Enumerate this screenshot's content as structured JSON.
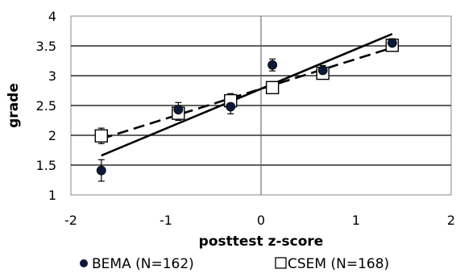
{
  "chart_data": {
    "type": "scatter",
    "xlabel": "posttest z-score",
    "ylabel": "grade",
    "xlim": [
      -2,
      2
    ],
    "ylim": [
      1,
      4
    ],
    "x_ticks": [
      -2,
      -1,
      0,
      1,
      2
    ],
    "y_ticks": [
      1,
      1.5,
      2,
      2.5,
      3,
      3.5,
      4
    ],
    "x_tick_labels": [
      "-2",
      "-1",
      "0",
      "1",
      "2"
    ],
    "y_tick_labels": [
      "1",
      "1.5",
      "2",
      "2.5",
      "3",
      "3.5",
      "4"
    ],
    "grid": "horizontal",
    "legend_position": "bottom",
    "series": [
      {
        "name": "BEMA (N=162)",
        "marker": "filled-circle",
        "color": "#0b1a3a",
        "points": [
          {
            "x": -1.68,
            "y": 1.41,
            "err": 0.18
          },
          {
            "x": -0.87,
            "y": 2.43,
            "err": 0.12
          },
          {
            "x": -0.32,
            "y": 2.48,
            "err": 0.12
          },
          {
            "x": 0.12,
            "y": 3.18,
            "err": 0.1
          },
          {
            "x": 0.65,
            "y": 3.09,
            "err": 0.08
          },
          {
            "x": 1.38,
            "y": 3.55,
            "err": 0.07
          }
        ],
        "trendline": {
          "style": "solid",
          "x": [
            -1.68,
            1.38
          ],
          "y": [
            1.66,
            3.7
          ]
        }
      },
      {
        "name": "CSEM (N=168)",
        "marker": "open-square",
        "color": "#000000",
        "points": [
          {
            "x": -1.68,
            "y": 1.99,
            "err": 0.13
          },
          {
            "x": -0.87,
            "y": 2.37,
            "err": 0.12
          },
          {
            "x": -0.32,
            "y": 2.58,
            "err": 0.12
          },
          {
            "x": 0.12,
            "y": 2.8,
            "err": 0.1
          },
          {
            "x": 0.65,
            "y": 3.04,
            "err": 0.09
          },
          {
            "x": 1.38,
            "y": 3.51,
            "err": 0.08
          }
        ],
        "trendline": {
          "style": "dashed",
          "x": [
            -1.68,
            1.38
          ],
          "y": [
            1.94,
            3.47
          ]
        }
      }
    ]
  }
}
